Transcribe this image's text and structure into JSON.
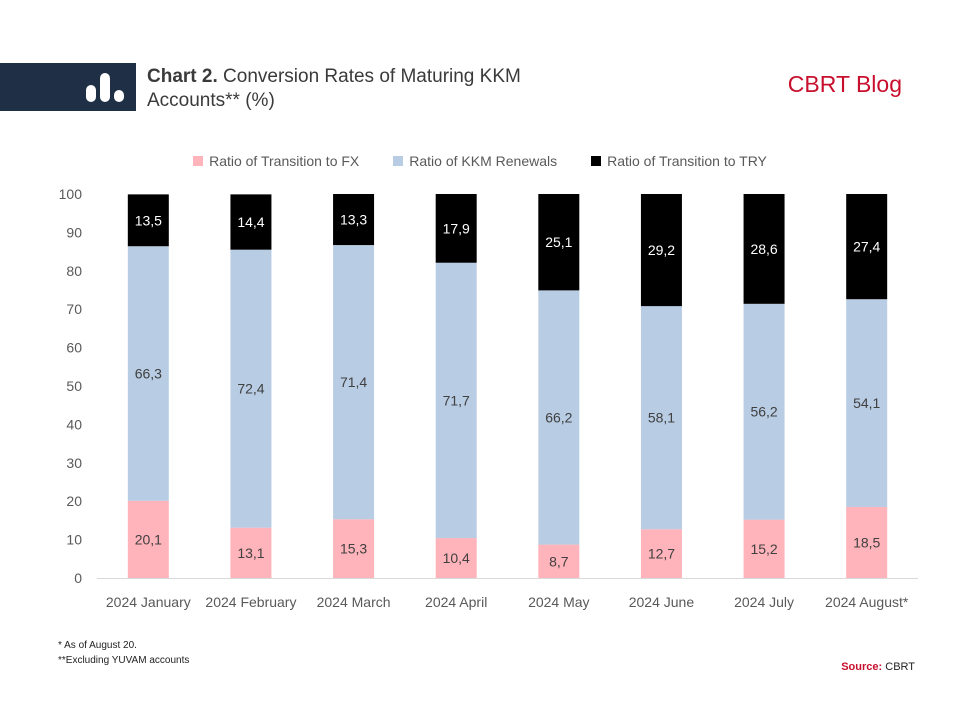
{
  "header": {
    "title_prefix": "Chart 2.",
    "title_text": "Conversion Rates of Maturing KKM Accounts** (%)",
    "brand": "CBRT Blog",
    "icon": "bar-chart-icon"
  },
  "colors": {
    "header_band": "#1f2f45",
    "brand": "#c8102e",
    "fx": "#ffb3ba",
    "renewals": "#b8cce4",
    "try": "#000000"
  },
  "chart_data": {
    "type": "bar",
    "stacked": true,
    "categories": [
      "2024 January",
      "2024 February",
      "2024 March",
      "2024 April",
      "2024 May",
      "2024 June",
      "2024 July",
      "2024 August*"
    ],
    "series": [
      {
        "name": "Ratio of Transition to FX",
        "color": "#ffb3ba",
        "values": [
          20.1,
          13.1,
          15.3,
          10.4,
          8.7,
          12.7,
          15.2,
          18.5
        ],
        "labels": [
          "20,1",
          "13,1",
          "15,3",
          "10,4",
          "8,7",
          "12,7",
          "15,2",
          "18,5"
        ]
      },
      {
        "name": "Ratio of KKM Renewals",
        "color": "#b8cce4",
        "values": [
          66.3,
          72.4,
          71.4,
          71.7,
          66.2,
          58.1,
          56.2,
          54.1
        ],
        "labels": [
          "66,3",
          "72,4",
          "71,4",
          "71,7",
          "66,2",
          "58,1",
          "56,2",
          "54,1"
        ]
      },
      {
        "name": "Ratio of Transition to TRY",
        "color": "#000000",
        "values": [
          13.5,
          14.4,
          13.3,
          17.9,
          25.1,
          29.2,
          28.6,
          27.4
        ],
        "labels": [
          "13,5",
          "14,4",
          "13,3",
          "17,9",
          "25,1",
          "29,2",
          "28,6",
          "27,4"
        ]
      }
    ],
    "ylim": [
      0,
      100
    ],
    "yticks": [
      0,
      10,
      20,
      30,
      40,
      50,
      60,
      70,
      80,
      90,
      100
    ],
    "grid": false,
    "legend_position": "top"
  },
  "footnotes": {
    "note1": "* As of August 20.",
    "note2": "**Excluding YUVAM accounts",
    "source_label": "Source:",
    "source_value": "CBRT"
  }
}
